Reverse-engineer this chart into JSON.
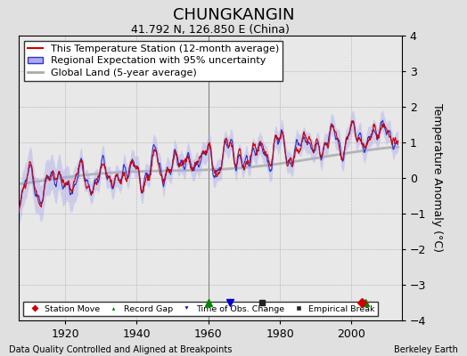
{
  "title": "CHUNGKANGIN",
  "subtitle": "41.792 N, 126.850 E (China)",
  "ylabel": "Temperature Anomaly (°C)",
  "xlabel_note": "Data Quality Controlled and Aligned at Breakpoints",
  "credit": "Berkeley Earth",
  "year_start": 1907,
  "year_end": 2013,
  "ylim": [
    -4,
    4
  ],
  "yticks": [
    -4,
    -3,
    -2,
    -1,
    0,
    1,
    2,
    3,
    4
  ],
  "xticks": [
    1920,
    1940,
    1960,
    1980,
    2000
  ],
  "bg_color": "#e0e0e0",
  "plot_bg_color": "#e8e8e8",
  "legend_entries": [
    "This Temperature Station (12-month average)",
    "Regional Expectation with 95% uncertainty",
    "Global Land (5-year average)"
  ],
  "station_color": "#cc0000",
  "regional_color": "#3333cc",
  "regional_fill": "#aaaaee",
  "global_color": "#aaaaaa",
  "vertical_line_year": 1960,
  "vertical_line_color": "#555555",
  "markers": {
    "record_gap": {
      "years": [
        1960,
        2004
      ],
      "color": "#008800",
      "marker": "^"
    },
    "time_obs_change": {
      "years": [
        1966
      ],
      "color": "#0000cc",
      "marker": "v"
    },
    "empirical_break": {
      "years": [
        1975
      ],
      "color": "#222222",
      "marker": "s"
    },
    "station_move": {
      "years": [
        2003
      ],
      "color": "#cc0000",
      "marker": "D"
    }
  },
  "title_fontsize": 13,
  "subtitle_fontsize": 9,
  "axis_fontsize": 9,
  "legend_fontsize": 8
}
